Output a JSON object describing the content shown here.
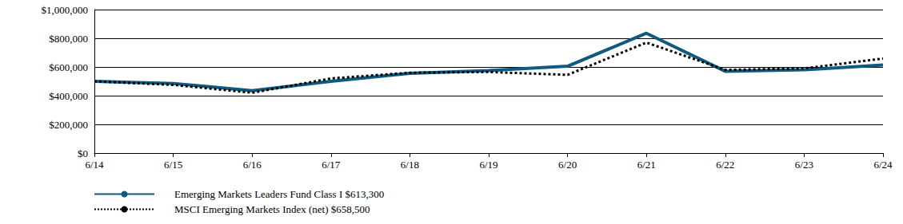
{
  "chart_data": {
    "type": "line",
    "categories": [
      "6/14",
      "6/15",
      "6/16",
      "6/17",
      "6/18",
      "6/19",
      "6/20",
      "6/21",
      "6/22",
      "6/23",
      "6/24"
    ],
    "series": [
      {
        "name": "Emerging Markets Leaders Fund Class I $613,300",
        "color": "#0e5a80",
        "line_style": "solid",
        "values": [
          500000,
          485000,
          435000,
          500000,
          555000,
          575000,
          605000,
          835000,
          570000,
          580000,
          613300
        ]
      },
      {
        "name": "MSCI Emerging Markets Index (net) $658,500",
        "color": "#000000",
        "line_style": "dotted",
        "values": [
          500000,
          475000,
          420000,
          520000,
          560000,
          565000,
          545000,
          770000,
          580000,
          590000,
          658500
        ]
      }
    ],
    "ylim": [
      0,
      1000000
    ],
    "yticks": [
      {
        "value": 0,
        "label": "$0"
      },
      {
        "value": 200000,
        "label": "$200,000"
      },
      {
        "value": 400000,
        "label": "$400,000"
      },
      {
        "value": 600000,
        "label": "$600,000"
      },
      {
        "value": 800000,
        "label": "$800,000"
      },
      {
        "value": 1000000,
        "label": "$1,000,000"
      }
    ],
    "grid": true,
    "legend": "bottom-left"
  }
}
